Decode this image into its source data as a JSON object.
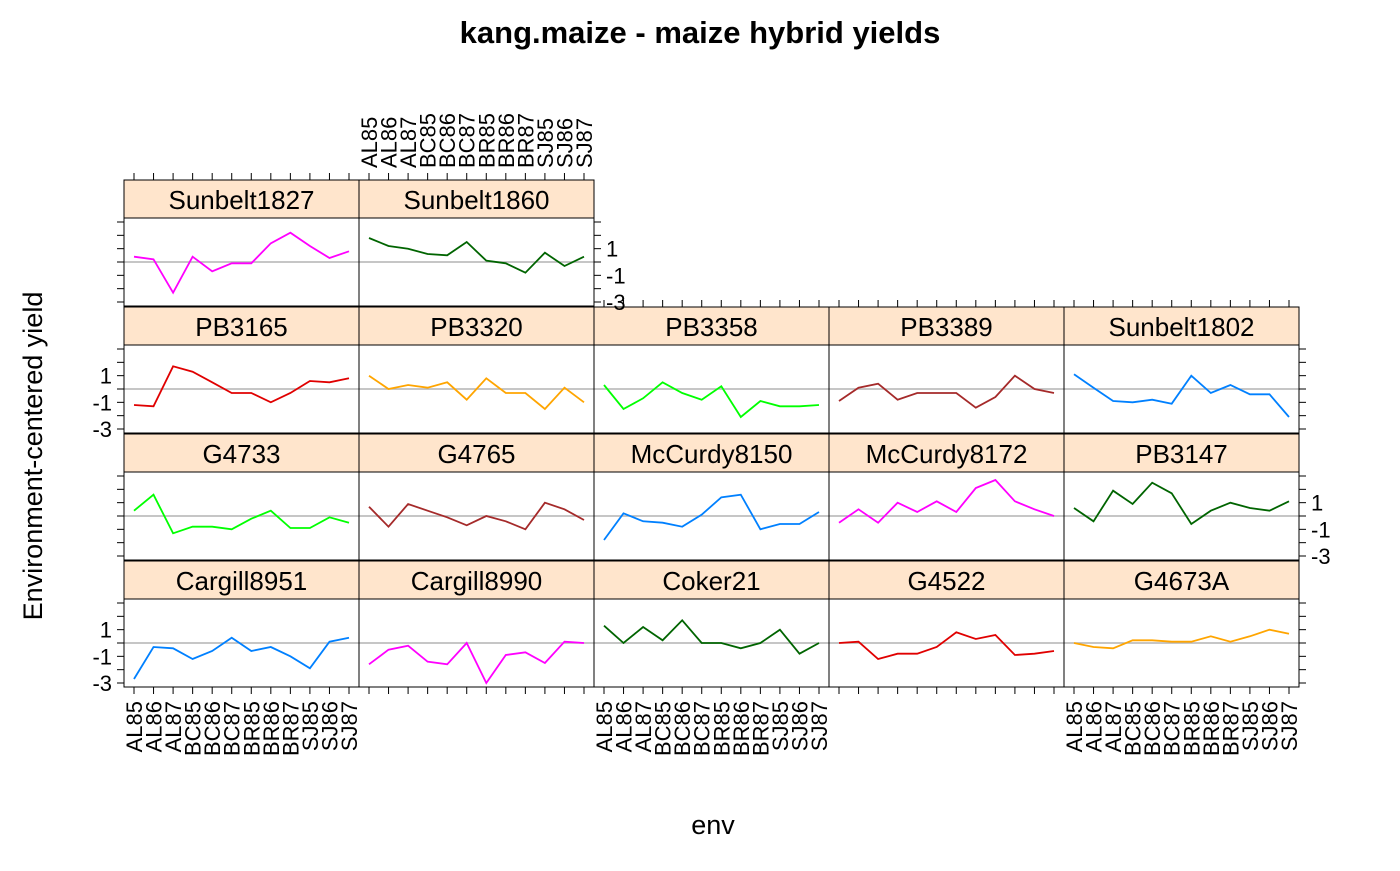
{
  "chart_data": {
    "type": "line",
    "title": "kang.maize - maize hybrid yields",
    "xlabel": "env",
    "ylabel": "Environment-centered yield",
    "x_categories": [
      "AL85",
      "AL86",
      "AL87",
      "BC85",
      "BC86",
      "BC87",
      "BR85",
      "BR86",
      "BR87",
      "SJ85",
      "SJ86",
      "SJ87"
    ],
    "y_ticks": [
      1,
      -1,
      -3
    ],
    "y_tick_labels": [
      "1",
      "-1",
      "-3"
    ],
    "ylim": [
      -3.3,
      3.3
    ],
    "reference_line": 0,
    "layout": "trellis 5 columns x 4 rows",
    "series": [
      {
        "name": "Cargill8951",
        "row": 0,
        "col": 0,
        "color": "#0080ff",
        "values": [
          -2.7,
          -0.3,
          -0.4,
          -1.2,
          -0.6,
          0.4,
          -0.6,
          -0.3,
          -1.0,
          -1.9,
          0.1,
          0.4
        ]
      },
      {
        "name": "Cargill8990",
        "row": 0,
        "col": 1,
        "color": "#ff00ff",
        "values": [
          -1.6,
          -0.5,
          -0.2,
          -1.4,
          -1.6,
          0.0,
          -3.0,
          -0.9,
          -0.7,
          -1.5,
          0.1,
          0.0
        ]
      },
      {
        "name": "Coker21",
        "row": 0,
        "col": 2,
        "color": "#006400",
        "values": [
          1.3,
          0.0,
          1.2,
          0.2,
          1.7,
          0.0,
          0.0,
          -0.4,
          0.0,
          1.0,
          -0.8,
          0.0
        ]
      },
      {
        "name": "G4522",
        "row": 0,
        "col": 3,
        "color": "#e00000",
        "values": [
          0.0,
          0.1,
          -1.2,
          -0.8,
          -0.8,
          -0.3,
          0.8,
          0.3,
          0.6,
          -0.9,
          -0.8,
          -0.6
        ]
      },
      {
        "name": "G4673A",
        "row": 0,
        "col": 4,
        "color": "#ffa500",
        "values": [
          0.0,
          -0.3,
          -0.4,
          0.2,
          0.2,
          0.1,
          0.1,
          0.5,
          0.1,
          0.5,
          1.0,
          0.7
        ]
      },
      {
        "name": "G4733",
        "row": 1,
        "col": 0,
        "color": "#00ff00",
        "values": [
          0.4,
          1.6,
          -1.3,
          -0.8,
          -0.8,
          -1.0,
          -0.2,
          0.4,
          -0.9,
          -0.9,
          -0.1,
          -0.5
        ]
      },
      {
        "name": "G4765",
        "row": 1,
        "col": 1,
        "color": "#a52a2a",
        "values": [
          0.7,
          -0.8,
          0.9,
          0.4,
          -0.1,
          -0.7,
          0.0,
          -0.4,
          -1.0,
          1.0,
          0.5,
          -0.3
        ]
      },
      {
        "name": "McCurdy8150",
        "row": 1,
        "col": 2,
        "color": "#0080ff",
        "values": [
          -1.8,
          0.2,
          -0.4,
          -0.5,
          -0.8,
          0.1,
          1.4,
          1.6,
          -1.0,
          -0.6,
          -0.6,
          0.3
        ]
      },
      {
        "name": "McCurdy8172",
        "row": 1,
        "col": 3,
        "color": "#ff00ff",
        "values": [
          -0.5,
          0.5,
          -0.5,
          1.0,
          0.3,
          1.1,
          0.3,
          2.1,
          2.7,
          1.1,
          0.5,
          0.0
        ]
      },
      {
        "name": "PB3147",
        "row": 1,
        "col": 4,
        "color": "#006400",
        "values": [
          0.6,
          -0.4,
          1.9,
          0.9,
          2.5,
          1.7,
          -0.6,
          0.4,
          1.0,
          0.6,
          0.4,
          1.1
        ]
      },
      {
        "name": "PB3165",
        "row": 2,
        "col": 0,
        "color": "#e00000",
        "values": [
          -1.2,
          -1.3,
          1.7,
          1.3,
          0.5,
          -0.3,
          -0.3,
          -1.0,
          -0.3,
          0.6,
          0.5,
          0.8
        ]
      },
      {
        "name": "PB3320",
        "row": 2,
        "col": 1,
        "color": "#ffa500",
        "values": [
          1.0,
          0.0,
          0.3,
          0.1,
          0.5,
          -0.8,
          0.8,
          -0.3,
          -0.3,
          -1.5,
          0.1,
          -1.0
        ]
      },
      {
        "name": "PB3358",
        "row": 2,
        "col": 2,
        "color": "#00ff00",
        "values": [
          0.3,
          -1.5,
          -0.7,
          0.5,
          -0.3,
          -0.8,
          0.2,
          -2.1,
          -0.9,
          -1.3,
          -1.3,
          -1.2
        ]
      },
      {
        "name": "PB3389",
        "row": 2,
        "col": 3,
        "color": "#a52a2a",
        "values": [
          -0.9,
          0.1,
          0.4,
          -0.8,
          -0.3,
          -0.3,
          -0.3,
          -1.4,
          -0.6,
          1.0,
          0.0,
          -0.3
        ]
      },
      {
        "name": "Sunbelt1802",
        "row": 2,
        "col": 4,
        "color": "#0080ff",
        "values": [
          1.1,
          0.1,
          -0.9,
          -1.0,
          -0.8,
          -1.1,
          1.0,
          -0.3,
          0.3,
          -0.4,
          -0.4,
          -2.1
        ]
      },
      {
        "name": "Sunbelt1827",
        "row": 3,
        "col": 0,
        "color": "#ff00ff",
        "values": [
          0.4,
          0.2,
          -2.3,
          0.4,
          -0.7,
          -0.1,
          -0.1,
          1.4,
          2.2,
          1.2,
          0.3,
          0.8
        ]
      },
      {
        "name": "Sunbelt1860",
        "row": 3,
        "col": 1,
        "color": "#006400",
        "values": [
          1.8,
          1.2,
          1.0,
          0.6,
          0.5,
          1.5,
          0.1,
          -0.1,
          -0.8,
          0.7,
          -0.3,
          0.4
        ]
      }
    ]
  }
}
